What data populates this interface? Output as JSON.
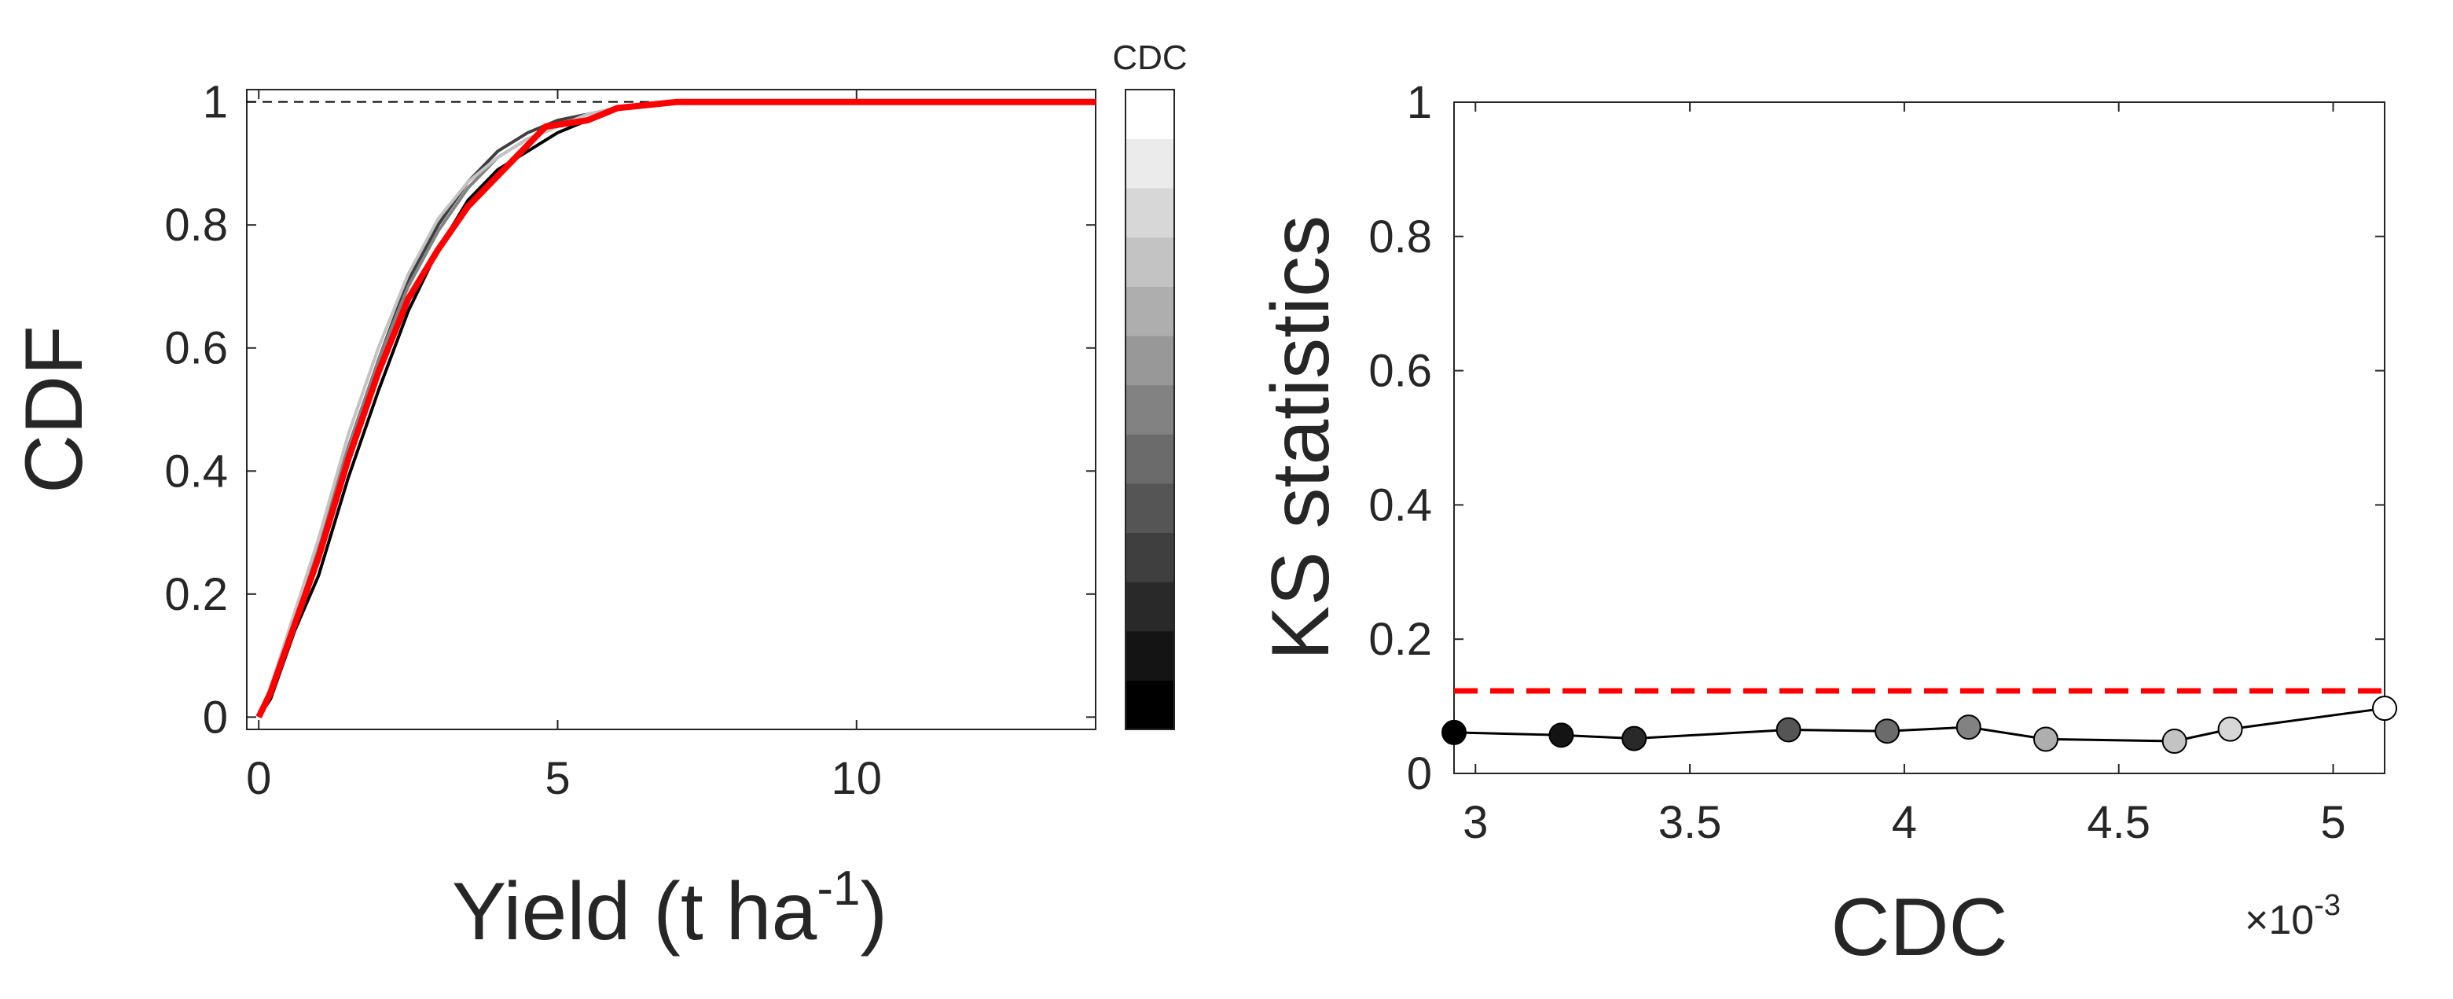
{
  "chart_data": [
    {
      "type": "line",
      "xlabel": "Yield (t ha",
      "xlabel_sup": "-1",
      "xlabel_close": ")",
      "ylabel": "CDF",
      "xlim": [
        -0.2,
        14
      ],
      "ylim": [
        -0.02,
        1.02
      ],
      "xticks": [
        0,
        5,
        10
      ],
      "yticks": [
        0,
        0.2,
        0.4,
        0.6,
        0.8,
        1
      ],
      "reference_line": {
        "y": 1,
        "style": "dashed",
        "color": "#000000"
      },
      "colorbar": {
        "label": "CDC",
        "colors": [
          "#000000",
          "#141414",
          "#292929",
          "#3f3f3f",
          "#555555",
          "#6b6b6b",
          "#828282",
          "#989898",
          "#aeaeae",
          "#c3c3c3",
          "#d7d7d7",
          "#ebebeb",
          "#ffffff"
        ]
      },
      "series": [
        {
          "color": "#000000",
          "x": [
            0,
            0.2,
            0.6,
            1.0,
            1.5,
            2.0,
            2.5,
            3.0,
            3.5,
            4.0,
            4.5,
            5.0,
            5.5,
            6.0,
            7.0,
            8.0,
            14
          ],
          "y": [
            0,
            0.03,
            0.14,
            0.23,
            0.39,
            0.53,
            0.66,
            0.76,
            0.84,
            0.89,
            0.92,
            0.95,
            0.97,
            0.99,
            1,
            1,
            1
          ]
        },
        {
          "color": "#3f3f3f",
          "x": [
            0,
            0.2,
            0.6,
            1.0,
            1.5,
            2.0,
            2.5,
            3.0,
            3.5,
            4.0,
            4.5,
            5.0,
            5.5,
            6.0,
            7.0,
            8.0,
            14
          ],
          "y": [
            0,
            0.04,
            0.16,
            0.27,
            0.43,
            0.58,
            0.71,
            0.8,
            0.87,
            0.92,
            0.95,
            0.97,
            0.98,
            0.99,
            1,
            1,
            1
          ]
        },
        {
          "color": "#828282",
          "x": [
            0,
            0.2,
            0.6,
            1.0,
            1.5,
            2.0,
            2.5,
            3.0,
            3.5,
            4.0,
            4.5,
            5.0,
            5.5,
            6.0,
            7.0,
            8.0,
            14
          ],
          "y": [
            0,
            0.04,
            0.16,
            0.28,
            0.44,
            0.58,
            0.7,
            0.79,
            0.86,
            0.91,
            0.94,
            0.96,
            0.98,
            0.99,
            1,
            1,
            1
          ]
        },
        {
          "color": "#c3c3c3",
          "x": [
            0,
            0.2,
            0.6,
            1.0,
            1.5,
            2.0,
            2.5,
            3.0,
            3.5,
            4.0,
            4.5,
            5.0,
            5.5,
            6.0,
            7.0,
            8.0,
            14
          ],
          "y": [
            0,
            0.05,
            0.17,
            0.29,
            0.46,
            0.6,
            0.72,
            0.81,
            0.87,
            0.91,
            0.94,
            0.96,
            0.98,
            0.99,
            1,
            1,
            1
          ]
        },
        {
          "color": "#ff0000",
          "highlight": true,
          "x": [
            0,
            0.2,
            0.6,
            1.0,
            1.5,
            2.0,
            2.5,
            3.0,
            3.5,
            4.0,
            4.5,
            4.8,
            5.5,
            6.0,
            7.0,
            8.0,
            14
          ],
          "y": [
            0,
            0.04,
            0.15,
            0.26,
            0.42,
            0.56,
            0.68,
            0.76,
            0.83,
            0.88,
            0.93,
            0.96,
            0.97,
            0.99,
            1,
            1,
            1
          ]
        }
      ]
    },
    {
      "type": "scatter",
      "xlabel": "CDC",
      "ylabel": "KS statistics",
      "x_multiplier_base": "×10",
      "x_multiplier_exp": "-3",
      "xlim": [
        2.95,
        5.12
      ],
      "ylim": [
        0,
        1
      ],
      "xticks": [
        3,
        3.5,
        4,
        4.5,
        5
      ],
      "xtick_labels": [
        "3",
        "3.5",
        "4",
        "4.5",
        "5"
      ],
      "yticks": [
        0,
        0.2,
        0.4,
        0.6,
        0.8,
        1
      ],
      "ytick_labels": [
        "0",
        "0.2",
        "0.4",
        "0.6",
        "0.8",
        "1"
      ],
      "threshold_line": {
        "y": 0.123,
        "style": "dashed",
        "color": "#ff0000"
      },
      "points": [
        {
          "x": 2.95,
          "y": 0.061,
          "fill": "#000000"
        },
        {
          "x": 3.2,
          "y": 0.057,
          "fill": "#141414"
        },
        {
          "x": 3.37,
          "y": 0.052,
          "fill": "#292929"
        },
        {
          "x": 3.73,
          "y": 0.065,
          "fill": "#555555"
        },
        {
          "x": 3.96,
          "y": 0.063,
          "fill": "#6b6b6b"
        },
        {
          "x": 4.15,
          "y": 0.069,
          "fill": "#828282"
        },
        {
          "x": 4.33,
          "y": 0.051,
          "fill": "#aeaeae"
        },
        {
          "x": 4.63,
          "y": 0.048,
          "fill": "#c3c3c3"
        },
        {
          "x": 4.76,
          "y": 0.066,
          "fill": "#d7d7d7"
        },
        {
          "x": 5.12,
          "y": 0.097,
          "fill": "#ffffff"
        }
      ]
    }
  ]
}
